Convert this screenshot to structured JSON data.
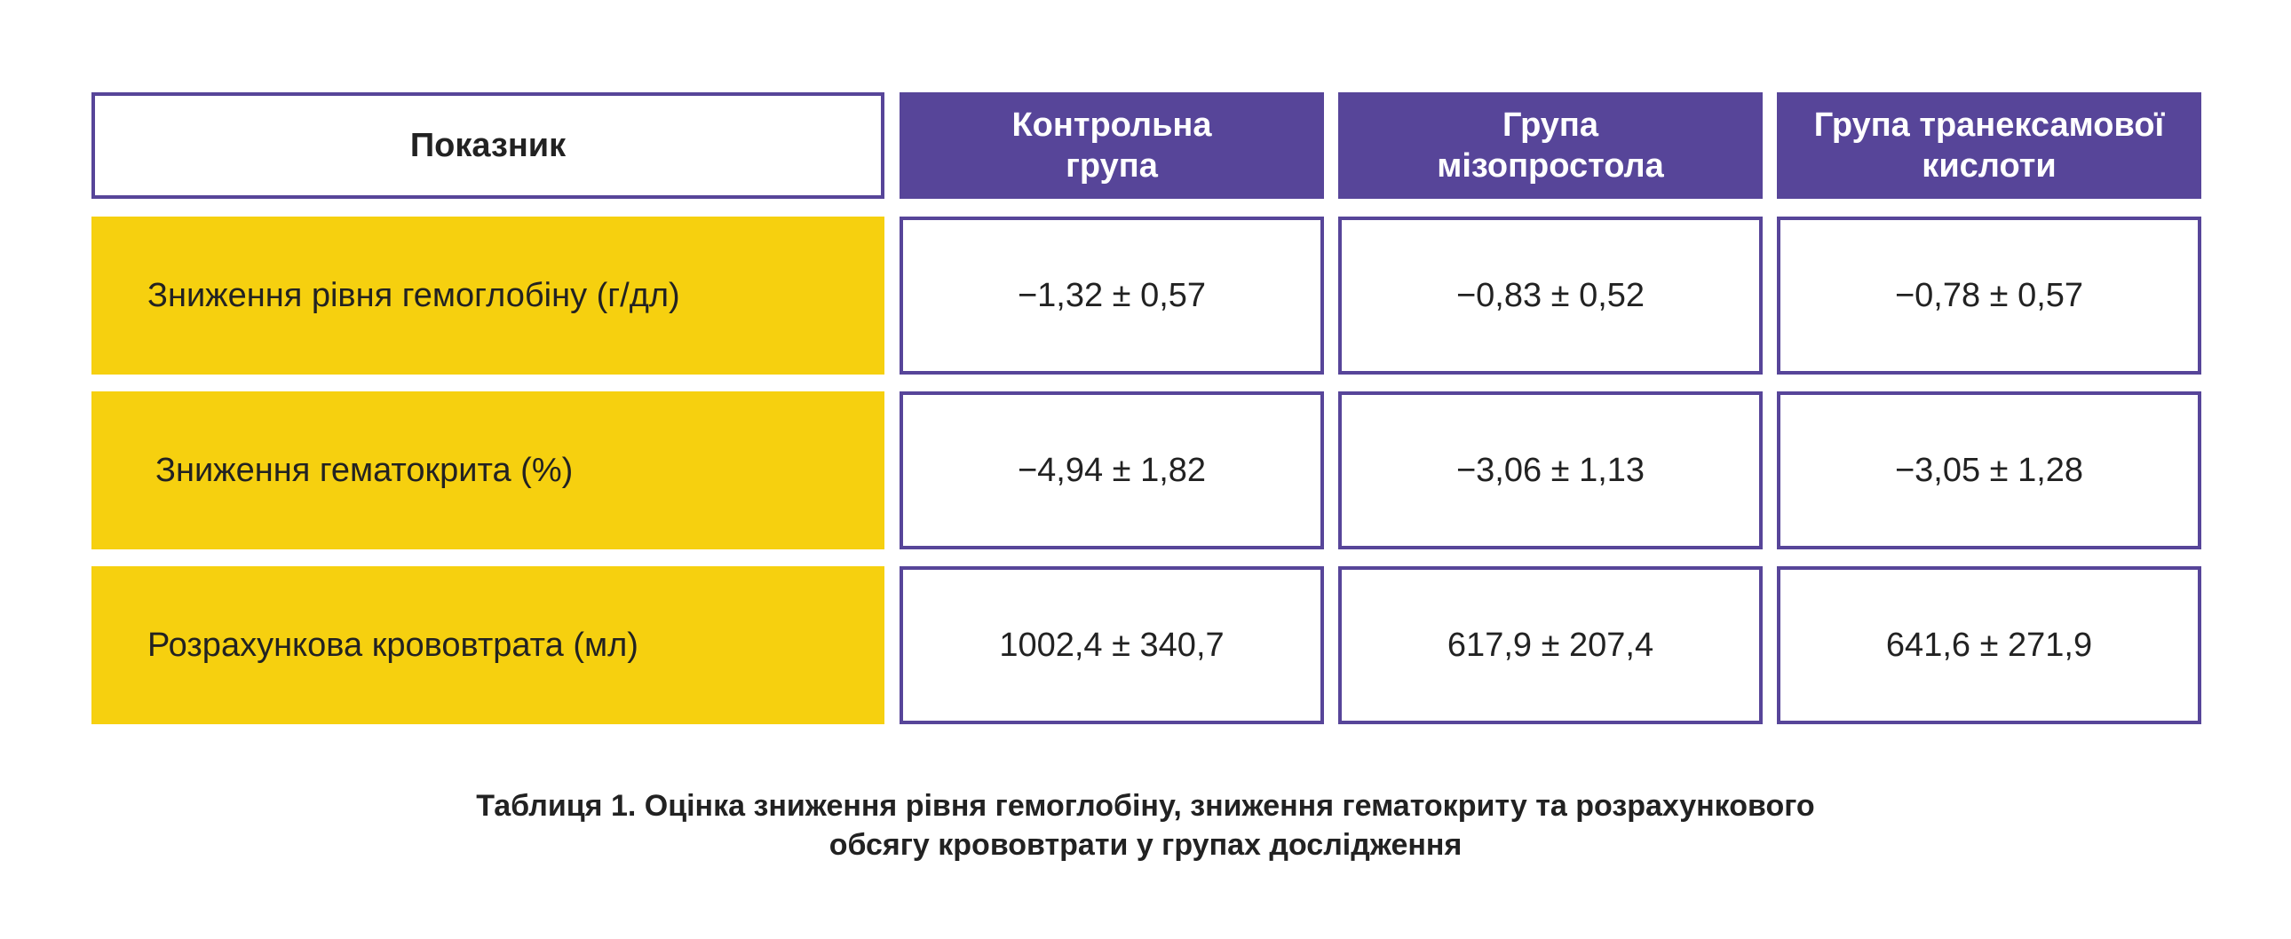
{
  "table": {
    "header": {
      "indicator_label": "Показник",
      "groups": [
        {
          "line1": "Контрольна",
          "line2": "група"
        },
        {
          "line1": "Група",
          "line2": "мізопростола"
        },
        {
          "line1": "Група транексамової",
          "line2": "кислоти"
        }
      ]
    },
    "rows": [
      {
        "label": "Зниження рівня гемоглобіну (г/дл)",
        "values": [
          "−1,32 ± 0,57",
          "−0,83 ± 0,52",
          "−0,78 ± 0,57"
        ]
      },
      {
        "label": "Зниження гематокрита (%)",
        "values": [
          "−4,94 ± 1,82",
          "−3,06 ± 1,13",
          "−3,05 ± 1,28"
        ]
      },
      {
        "label": "Розрахункова крововтрата (мл)",
        "values": [
          "1002,4 ± 340,7",
          "617,9 ± 207,4",
          "641,6 ± 271,9"
        ]
      }
    ]
  },
  "caption": {
    "line1": "Таблиця 1. Оцінка зниження рівня гемоглобіну, зниження гематокриту та розрахункового",
    "line2": "обсягу крововтрати у групах дослідження"
  },
  "colors": {
    "purple": "#574599",
    "yellow": "#f6d00f",
    "text": "#222222"
  }
}
